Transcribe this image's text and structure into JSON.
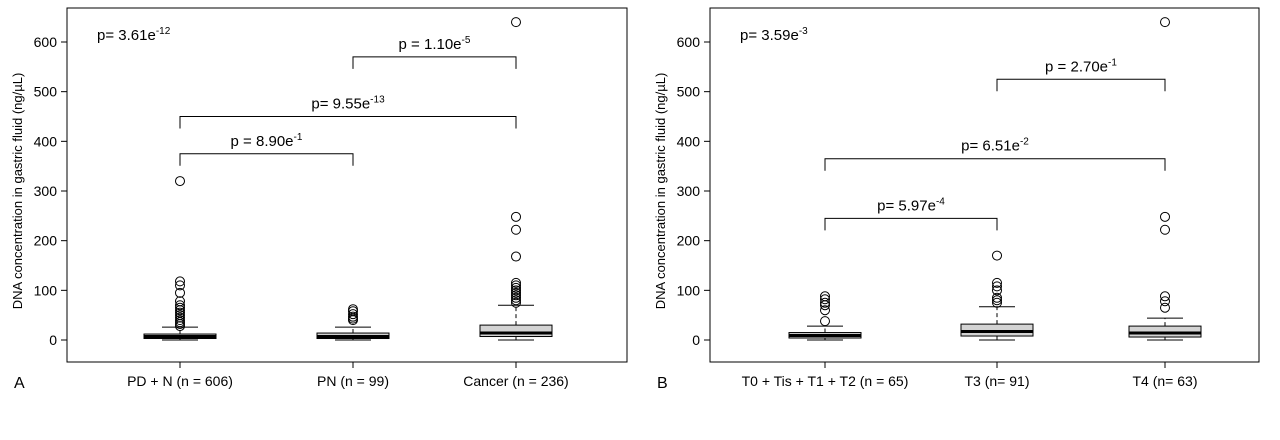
{
  "chart_data": [
    {
      "type": "box",
      "panel_label": "A",
      "ylabel": "DNA concentration in gastric fluid (ng/µL)",
      "ylim": [
        0,
        650
      ],
      "yticks": [
        0,
        100,
        200,
        300,
        400,
        500,
        600
      ],
      "overall_p": {
        "base": "p= 3.61e",
        "exp": "-12"
      },
      "categories": [
        "PD + N (n = 606)",
        "PN (n = 99)",
        "Cancer (n = 236)"
      ],
      "boxes": [
        {
          "q1": 3,
          "median": 7,
          "q3": 12,
          "whisker_low": 0,
          "whisker_high": 26,
          "outliers": [
            28,
            32,
            36,
            40,
            45,
            50,
            55,
            60,
            65,
            70,
            78,
            95,
            110,
            118,
            320
          ]
        },
        {
          "q1": 3,
          "median": 7,
          "q3": 14,
          "whisker_low": 0,
          "whisker_high": 26,
          "outliers": [
            40,
            43,
            47,
            52,
            58,
            62
          ]
        },
        {
          "q1": 7,
          "median": 14,
          "q3": 30,
          "whisker_low": 0,
          "whisker_high": 70,
          "outliers": [
            75,
            80,
            85,
            90,
            95,
            100,
            105,
            110,
            115,
            168,
            222,
            248,
            640
          ]
        }
      ],
      "comparisons": [
        {
          "from": 0,
          "to": 1,
          "y": 375,
          "base": "p = 8.90e",
          "exp": "-1"
        },
        {
          "from": 0,
          "to": 2,
          "y": 450,
          "base": "p= 9.55e",
          "exp": "-13"
        },
        {
          "from": 1,
          "to": 2,
          "y": 570,
          "base": "p = 1.10e",
          "exp": "-5"
        }
      ]
    },
    {
      "type": "box",
      "panel_label": "B",
      "ylabel": "DNA concentration in gastric fluid (ng/µL)",
      "ylim": [
        0,
        650
      ],
      "yticks": [
        0,
        100,
        200,
        300,
        400,
        500,
        600
      ],
      "overall_p": {
        "base": "p= 3.59e",
        "exp": "-3"
      },
      "categories": [
        "T0 + Tis + T1 + T2 (n = 65)",
        "T3 (n= 91)",
        "T4 (n= 63)"
      ],
      "boxes": [
        {
          "q1": 4,
          "median": 9,
          "q3": 15,
          "whisker_low": 0,
          "whisker_high": 28,
          "outliers": [
            38,
            60,
            70,
            75,
            82,
            88
          ]
        },
        {
          "q1": 8,
          "median": 17,
          "q3": 32,
          "whisker_low": 0,
          "whisker_high": 67,
          "outliers": [
            75,
            80,
            85,
            100,
            108,
            115,
            170
          ]
        },
        {
          "q1": 6,
          "median": 14,
          "q3": 28,
          "whisker_low": 0,
          "whisker_high": 44,
          "outliers": [
            65,
            78,
            88,
            222,
            248,
            640
          ]
        }
      ],
      "comparisons": [
        {
          "from": 0,
          "to": 1,
          "y": 245,
          "base": "p= 5.97e",
          "exp": "-4"
        },
        {
          "from": 0,
          "to": 2,
          "y": 365,
          "base": "p= 6.51e",
          "exp": "-2"
        },
        {
          "from": 1,
          "to": 2,
          "y": 525,
          "base": "p = 2.70e",
          "exp": "-1"
        }
      ]
    }
  ]
}
